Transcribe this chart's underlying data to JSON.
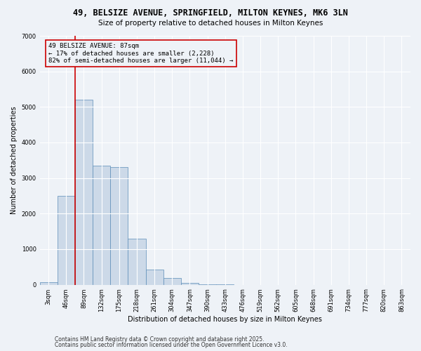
{
  "title_line1": "49, BELSIZE AVENUE, SPRINGFIELD, MILTON KEYNES, MK6 3LN",
  "title_line2": "Size of property relative to detached houses in Milton Keynes",
  "xlabel": "Distribution of detached houses by size in Milton Keynes",
  "ylabel": "Number of detached properties",
  "bin_labels": [
    "3sqm",
    "46sqm",
    "89sqm",
    "132sqm",
    "175sqm",
    "218sqm",
    "261sqm",
    "304sqm",
    "347sqm",
    "390sqm",
    "433sqm",
    "476sqm",
    "519sqm",
    "562sqm",
    "605sqm",
    "648sqm",
    "691sqm",
    "734sqm",
    "777sqm",
    "820sqm",
    "863sqm"
  ],
  "bar_values": [
    70,
    2500,
    5200,
    3350,
    3300,
    1300,
    420,
    180,
    60,
    10,
    2,
    0,
    0,
    0,
    0,
    0,
    0,
    0,
    0,
    0,
    0
  ],
  "bar_color": "#ccd9e8",
  "bar_edge_color": "#5b8db8",
  "vline_color": "#cc0000",
  "ylim": [
    0,
    7000
  ],
  "yticks": [
    0,
    1000,
    2000,
    3000,
    4000,
    5000,
    6000,
    7000
  ],
  "annotation_text": "49 BELSIZE AVENUE: 87sqm\n← 17% of detached houses are smaller (2,228)\n82% of semi-detached houses are larger (11,044) →",
  "annotation_box_color": "#cc0000",
  "footer_line1": "Contains HM Land Registry data © Crown copyright and database right 2025.",
  "footer_line2": "Contains public sector information licensed under the Open Government Licence v3.0.",
  "bg_color": "#eef2f7",
  "grid_color": "#ffffff",
  "title_fontsize": 8.5,
  "subtitle_fontsize": 7.5,
  "axis_label_fontsize": 7,
  "tick_fontsize": 6,
  "annotation_fontsize": 6.5,
  "footer_fontsize": 5.5,
  "vline_x_index": 2
}
